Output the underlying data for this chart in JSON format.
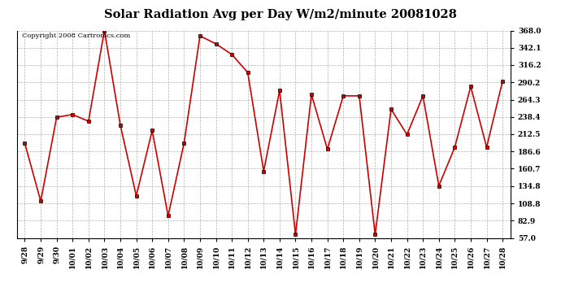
{
  "title": "Solar Radiation Avg per Day W/m2/minute 20081028",
  "copyright_text": "Copyright 2008 Cartronics.com",
  "dates": [
    "9/28",
    "9/29",
    "9/30",
    "10/01",
    "10/02",
    "10/03",
    "10/04",
    "10/05",
    "10/06",
    "10/07",
    "10/08",
    "10/09",
    "10/10",
    "10/11",
    "10/12",
    "10/13",
    "10/14",
    "10/15",
    "10/16",
    "10/17",
    "10/18",
    "10/19",
    "10/20",
    "10/21",
    "10/22",
    "10/23",
    "10/24",
    "10/25",
    "10/26",
    "10/27",
    "10/28"
  ],
  "values": [
    199,
    112,
    238,
    242,
    232,
    368,
    226,
    120,
    218,
    90,
    199,
    360,
    348,
    332,
    305,
    157,
    278,
    62,
    272,
    190,
    270,
    270,
    62,
    250,
    212,
    270,
    135,
    193,
    284,
    193,
    292
  ],
  "line_color": "#cc0000",
  "marker": "s",
  "marker_size": 2.5,
  "marker_color": "#000000",
  "background_color": "#ffffff",
  "grid_color": "#b0b0b0",
  "yticks": [
    57.0,
    82.9,
    108.8,
    134.8,
    160.7,
    186.6,
    212.5,
    238.4,
    264.3,
    290.2,
    316.2,
    342.1,
    368.0
  ],
  "ymin": 57.0,
  "ymax": 368.0,
  "title_fontsize": 10.5,
  "tick_fontsize": 6.5,
  "copyright_fontsize": 6
}
